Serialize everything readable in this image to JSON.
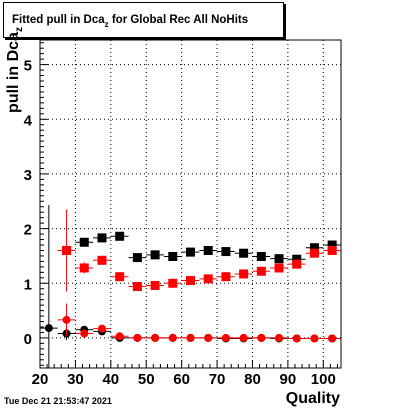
{
  "title": {
    "prefix": "Fitted pull in Dca",
    "subscript": "z",
    "suffix": " for Global Rec All NoHits"
  },
  "timestamp": "Tue Dec 21 21:53:47 2021",
  "chart_data": {
    "type": "scatter",
    "xlabel": "Quality",
    "ylabel_main": "pull in Dca",
    "ylabel_sub": "z",
    "xlim": [
      20,
      105
    ],
    "ylim": [
      -0.55,
      5.45
    ],
    "xticks": [
      20,
      30,
      40,
      50,
      60,
      70,
      80,
      90,
      100
    ],
    "yticks": [
      0,
      1,
      2,
      3,
      4,
      5
    ],
    "grid": true,
    "series": [
      {
        "color": "#000000",
        "marker": "square",
        "x_err": 2.5,
        "points": [
          {
            "x": 27.5,
            "y": 1.6,
            "err": 0.05
          },
          {
            "x": 32.5,
            "y": 1.75,
            "err": 0.06
          },
          {
            "x": 37.5,
            "y": 1.83,
            "err": 0.05
          },
          {
            "x": 42.5,
            "y": 1.86,
            "err": 0.05
          },
          {
            "x": 47.5,
            "y": 1.47,
            "err": 0.04
          },
          {
            "x": 52.5,
            "y": 1.52,
            "err": 0.04
          },
          {
            "x": 57.5,
            "y": 1.49,
            "err": 0.04
          },
          {
            "x": 62.5,
            "y": 1.57,
            "err": 0.04
          },
          {
            "x": 67.5,
            "y": 1.6,
            "err": 0.04
          },
          {
            "x": 72.5,
            "y": 1.58,
            "err": 0.04
          },
          {
            "x": 77.5,
            "y": 1.55,
            "err": 0.04
          },
          {
            "x": 82.5,
            "y": 1.49,
            "err": 0.04
          },
          {
            "x": 87.5,
            "y": 1.45,
            "err": 0.04
          },
          {
            "x": 92.5,
            "y": 1.44,
            "err": 0.04
          },
          {
            "x": 97.5,
            "y": 1.65,
            "err": 0.04
          },
          {
            "x": 102.5,
            "y": 1.7,
            "err": 0.04
          }
        ]
      },
      {
        "color": "#ff0000",
        "marker": "square",
        "x_err": 2.5,
        "points": [
          {
            "x": 27.5,
            "y": 1.6,
            "err": 0.75
          },
          {
            "x": 32.5,
            "y": 1.28,
            "err": 0.1
          },
          {
            "x": 37.5,
            "y": 1.42,
            "err": 0.08
          },
          {
            "x": 42.5,
            "y": 1.12,
            "err": 0.06
          },
          {
            "x": 47.5,
            "y": 0.94,
            "err": 0.04
          },
          {
            "x": 52.5,
            "y": 0.96,
            "err": 0.04
          },
          {
            "x": 57.5,
            "y": 1.0,
            "err": 0.04
          },
          {
            "x": 62.5,
            "y": 1.05,
            "err": 0.04
          },
          {
            "x": 67.5,
            "y": 1.08,
            "err": 0.04
          },
          {
            "x": 72.5,
            "y": 1.12,
            "err": 0.04
          },
          {
            "x": 77.5,
            "y": 1.17,
            "err": 0.04
          },
          {
            "x": 82.5,
            "y": 1.22,
            "err": 0.04
          },
          {
            "x": 87.5,
            "y": 1.28,
            "err": 0.04
          },
          {
            "x": 92.5,
            "y": 1.35,
            "err": 0.04
          },
          {
            "x": 97.5,
            "y": 1.55,
            "err": 0.04
          },
          {
            "x": 102.5,
            "y": 1.6,
            "err": 0.04
          }
        ]
      },
      {
        "color": "#000000",
        "marker": "circle",
        "x_err": 2.5,
        "points": [
          {
            "x": 22.5,
            "y": 0.18,
            "err": 2.25
          },
          {
            "x": 27.5,
            "y": 0.08,
            "err": 0.12
          },
          {
            "x": 32.5,
            "y": 0.15,
            "err": 0.05
          },
          {
            "x": 37.5,
            "y": 0.12,
            "err": 0.04
          },
          {
            "x": 42.5,
            "y": 0.0,
            "err": 0.03
          },
          {
            "x": 47.5,
            "y": 0.0,
            "err": 0.02
          },
          {
            "x": 52.5,
            "y": 0.0,
            "err": 0.02
          },
          {
            "x": 57.5,
            "y": 0.0,
            "err": 0.02
          },
          {
            "x": 62.5,
            "y": 0.0,
            "err": 0.02
          },
          {
            "x": 67.5,
            "y": 0.0,
            "err": 0.02
          },
          {
            "x": 72.5,
            "y": -0.01,
            "err": 0.02
          },
          {
            "x": 77.5,
            "y": -0.01,
            "err": 0.02
          },
          {
            "x": 82.5,
            "y": 0.0,
            "err": 0.02
          },
          {
            "x": 87.5,
            "y": -0.01,
            "err": 0.02
          },
          {
            "x": 92.5,
            "y": -0.01,
            "err": 0.02
          },
          {
            "x": 97.5,
            "y": -0.01,
            "err": 0.02
          },
          {
            "x": 102.5,
            "y": -0.01,
            "err": 0.02
          }
        ]
      },
      {
        "color": "#ff0000",
        "marker": "circle",
        "x_err": 2.5,
        "points": [
          {
            "x": 27.5,
            "y": 0.33,
            "err": 0.3
          },
          {
            "x": 32.5,
            "y": 0.08,
            "err": 0.05
          },
          {
            "x": 37.5,
            "y": 0.17,
            "err": 0.04
          },
          {
            "x": 42.5,
            "y": 0.03,
            "err": 0.03
          },
          {
            "x": 47.5,
            "y": 0.0,
            "err": 0.02
          },
          {
            "x": 52.5,
            "y": 0.0,
            "err": 0.02
          },
          {
            "x": 57.5,
            "y": 0.0,
            "err": 0.02
          },
          {
            "x": 62.5,
            "y": 0.0,
            "err": 0.02
          },
          {
            "x": 67.5,
            "y": 0.0,
            "err": 0.02
          },
          {
            "x": 72.5,
            "y": 0.0,
            "err": 0.02
          },
          {
            "x": 77.5,
            "y": 0.0,
            "err": 0.02
          },
          {
            "x": 82.5,
            "y": 0.0,
            "err": 0.02
          },
          {
            "x": 87.5,
            "y": 0.0,
            "err": 0.02
          },
          {
            "x": 92.5,
            "y": -0.01,
            "err": 0.02
          },
          {
            "x": 97.5,
            "y": -0.01,
            "err": 0.02
          },
          {
            "x": 102.5,
            "y": -0.01,
            "err": 0.02
          }
        ]
      }
    ]
  }
}
